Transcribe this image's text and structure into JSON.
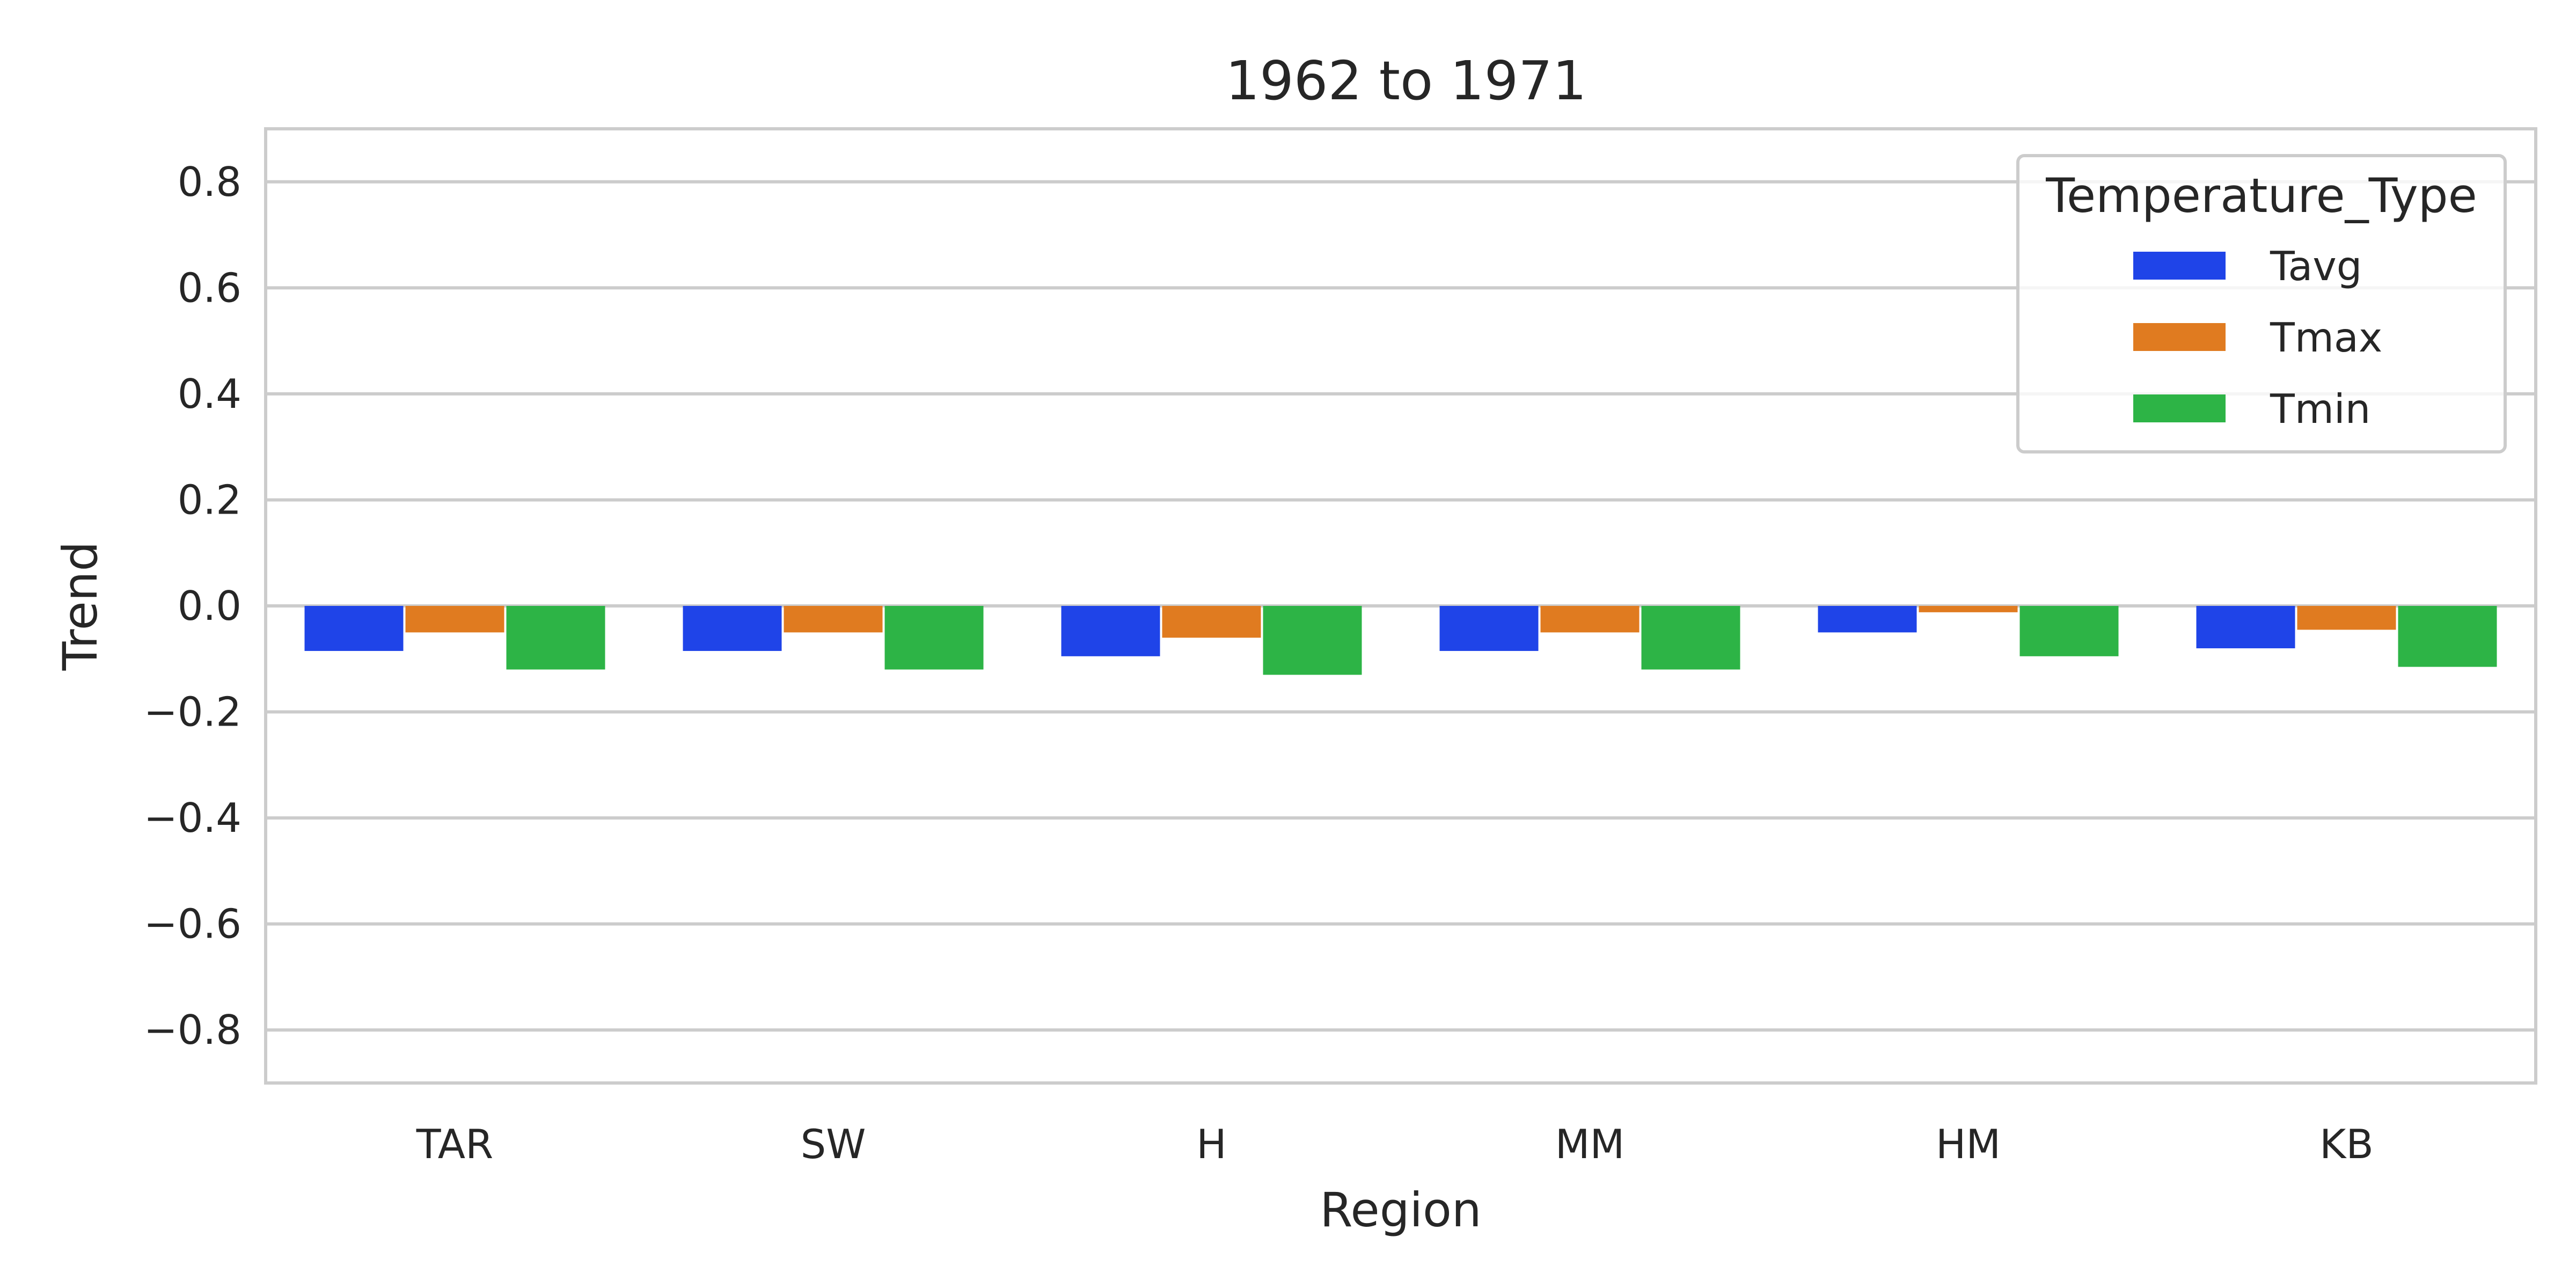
{
  "chart_data": {
    "type": "bar",
    "title": "1962 to 1971",
    "xlabel": "Region",
    "ylabel": "Trend",
    "ylim": [
      -0.9,
      0.9
    ],
    "yticks": [
      0.8,
      0.6,
      0.4,
      0.2,
      0.0,
      -0.2,
      -0.4,
      -0.6,
      -0.8
    ],
    "ytick_labels": [
      "0.8",
      "0.6",
      "0.4",
      "0.2",
      "0.0",
      "−0.2",
      "−0.4",
      "−0.6",
      "−0.8"
    ],
    "categories": [
      "TAR",
      "SW",
      "H",
      "MM",
      "HM",
      "KB"
    ],
    "series": [
      {
        "name": "Tavg",
        "color": "#1f44e8",
        "values": [
          -0.085,
          -0.085,
          -0.095,
          -0.085,
          -0.05,
          -0.08
        ]
      },
      {
        "name": "Tmax",
        "color": "#e07b20",
        "values": [
          -0.05,
          -0.05,
          -0.06,
          -0.05,
          -0.012,
          -0.045
        ]
      },
      {
        "name": "Tmin",
        "color": "#2db446",
        "values": [
          -0.12,
          -0.12,
          -0.13,
          -0.12,
          -0.095,
          -0.115
        ]
      }
    ],
    "grid": true,
    "legend": {
      "title": "Temperature_Type",
      "placement": "top-right"
    }
  }
}
